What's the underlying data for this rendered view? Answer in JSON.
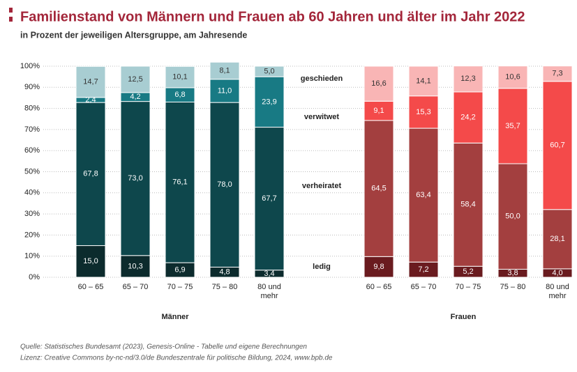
{
  "chart_data": {
    "type": "bar",
    "stacked": true,
    "title": "Familienstand von Männern und Frauen ab 60 Jahren und älter im Jahr 2022",
    "subtitle": "in Prozent der jeweiligen Altersgruppe, am Jahresende",
    "categories": [
      "60 – 65",
      "65 – 70",
      "70 – 75",
      "75 – 80",
      "80 und mehr"
    ],
    "ylim": [
      0,
      100
    ],
    "yticks": [
      {
        "value": 0,
        "label": "0%"
      },
      {
        "value": 10,
        "label": "10%"
      },
      {
        "value": 20,
        "label": "20%"
      },
      {
        "value": 30,
        "label": "30%"
      },
      {
        "value": 40,
        "label": "40%"
      },
      {
        "value": 50,
        "label": "50%"
      },
      {
        "value": 60,
        "label": "60%"
      },
      {
        "value": 70,
        "label": "70%"
      },
      {
        "value": 80,
        "label": "80%"
      },
      {
        "value": 90,
        "label": "90%"
      },
      {
        "value": 100,
        "label": "100%"
      }
    ],
    "grid": true,
    "series_names": [
      "ledig",
      "verheiratet",
      "verwitwet",
      "geschieden"
    ],
    "groups": [
      {
        "name": "Männer",
        "series": [
          {
            "color": "#0c2b2d",
            "values": [
              15.0,
              10.3,
              6.9,
              4.8,
              3.4
            ],
            "value_labels": [
              "15,0",
              "10,3",
              "6,9",
              "4,8",
              "3,4"
            ]
          },
          {
            "color": "#0e474c",
            "values": [
              67.8,
              73.0,
              76.1,
              78.0,
              67.7
            ],
            "value_labels": [
              "67,8",
              "73,0",
              "76,1",
              "78,0",
              "67,7"
            ]
          },
          {
            "color": "#187a84",
            "values": [
              2.4,
              4.2,
              6.8,
              11.0,
              23.9
            ],
            "value_labels": [
              "2,4",
              "4,2",
              "6,8",
              "11,0",
              "23,9"
            ]
          },
          {
            "color": "#a8cdd2",
            "values": [
              14.7,
              12.5,
              10.1,
              8.1,
              5.0
            ],
            "value_labels": [
              "14,7",
              "12,5",
              "10,1",
              "8,1",
              "5,0"
            ]
          }
        ]
      },
      {
        "name": "Frauen",
        "series": [
          {
            "color": "#6a1b1f",
            "values": [
              9.8,
              7.2,
              5.2,
              3.8,
              4.0
            ],
            "value_labels": [
              "9,8",
              "7,2",
              "5,2",
              "3,8",
              "4,0"
            ]
          },
          {
            "color": "#a33f3f",
            "values": [
              64.5,
              63.4,
              58.4,
              50.0,
              28.1
            ],
            "value_labels": [
              "64,5",
              "63,4",
              "58,4",
              "50,0",
              "28,1"
            ]
          },
          {
            "color": "#f44a4a",
            "values": [
              9.1,
              15.3,
              24.2,
              35.7,
              60.7
            ],
            "value_labels": [
              "9,1",
              "15,3",
              "24,2",
              "35,7",
              "60,7"
            ]
          },
          {
            "color": "#f9b5b5",
            "values": [
              16.6,
              14.1,
              12.3,
              10.6,
              7.3
            ],
            "value_labels": [
              "16,6",
              "14,1",
              "12,3",
              "10,6",
              "7,3"
            ]
          }
        ]
      }
    ],
    "source": "Quelle: Statistisches Bundesamt (2023), Genesis-Online - Tabelle und eigene Berechnungen",
    "license": "Lizenz: Creative Commons by-nc-nd/3.0/de Bundeszentrale für politische Bildung, 2024, www.bpb.de"
  }
}
